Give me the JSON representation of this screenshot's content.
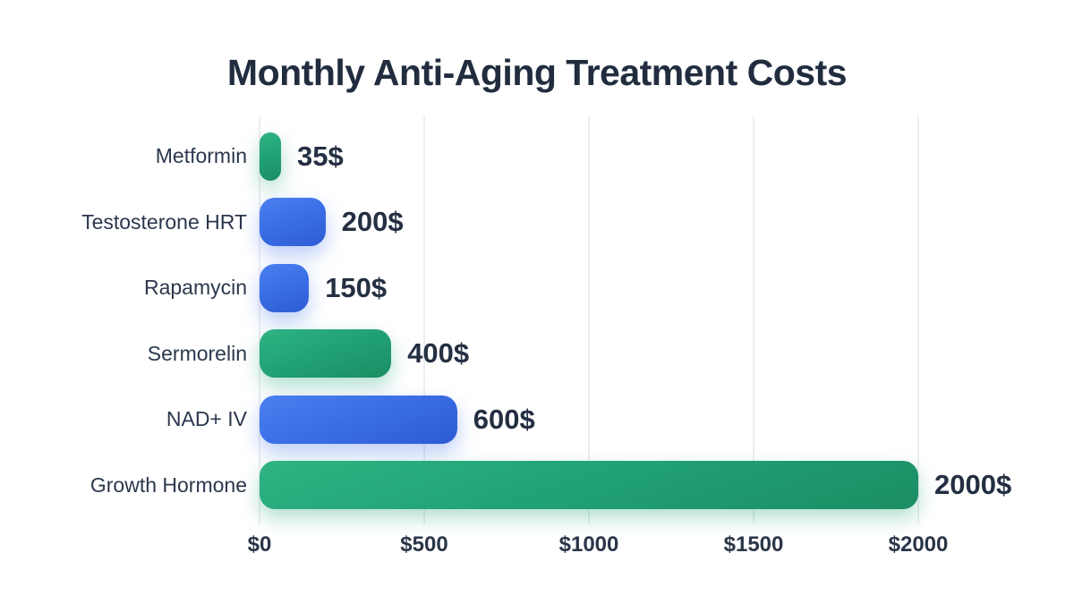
{
  "chart_data": {
    "type": "bar",
    "orientation": "horizontal",
    "title": "Monthly Anti-Aging Treatment Costs",
    "categories": [
      "Metformin",
      "Testosterone HRT",
      "Rapamycin",
      "Sermorelin",
      "NAD+ IV",
      "Growth Hormone"
    ],
    "values": [
      35,
      200,
      150,
      400,
      600,
      2000
    ],
    "value_labels": [
      "35$",
      "200$",
      "150$",
      "400$",
      "600$",
      "2000$"
    ],
    "bar_colors": [
      "green",
      "blue",
      "blue",
      "green",
      "blue",
      "green"
    ],
    "x_ticks": [
      {
        "label": "$0",
        "value": 0
      },
      {
        "label": "$500",
        "value": 500
      },
      {
        "label": "$1000",
        "value": 1000
      },
      {
        "label": "$1500",
        "value": 1500
      },
      {
        "label": "$2000",
        "value": 2000
      }
    ],
    "xlim": [
      0,
      2000
    ],
    "xlabel": "",
    "ylabel": "",
    "grid": "vertical-only",
    "legend": "none"
  },
  "colors": {
    "green_bar": "#21a377",
    "blue_bar": "#3b6fe6",
    "gridline": "#ededf1",
    "title_text": "#212d3f",
    "category_text": "#2b374c",
    "value_text": "#242f42",
    "tick_text": "#2a3548",
    "background": "#ffffff"
  }
}
